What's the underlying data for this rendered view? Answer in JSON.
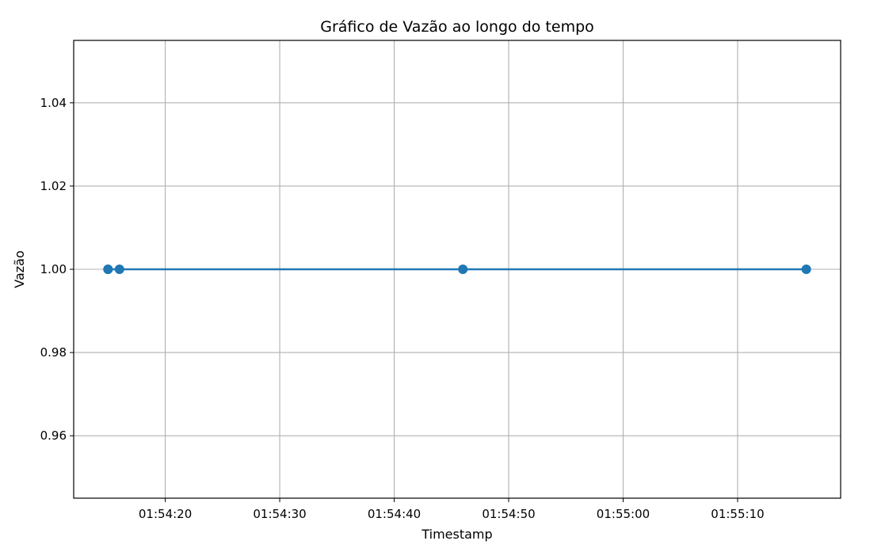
{
  "chart_data": {
    "type": "line",
    "title": "Gráfico de Vazão ao longo do tempo",
    "xlabel": "Timestamp",
    "ylabel": "Vazão",
    "x_is_time": true,
    "xlim": [
      "01:54:12",
      "01:55:19"
    ],
    "ylim": [
      0.945,
      1.055
    ],
    "x_ticks": [
      "01:54:20",
      "01:54:30",
      "01:54:40",
      "01:54:50",
      "01:55:00",
      "01:55:10"
    ],
    "y_ticks": [
      "0.96",
      "0.98",
      "1.00",
      "1.02",
      "1.04"
    ],
    "grid": true,
    "series": [
      {
        "color": "#1f77b4",
        "marker": "circle",
        "points": [
          {
            "x": "01:54:15",
            "y": 1.0
          },
          {
            "x": "01:54:15",
            "y": 1.0
          },
          {
            "x": "01:54:16",
            "y": 1.0
          },
          {
            "x": "01:54:46",
            "y": 1.0
          },
          {
            "x": "01:55:16",
            "y": 1.0
          }
        ]
      }
    ]
  }
}
